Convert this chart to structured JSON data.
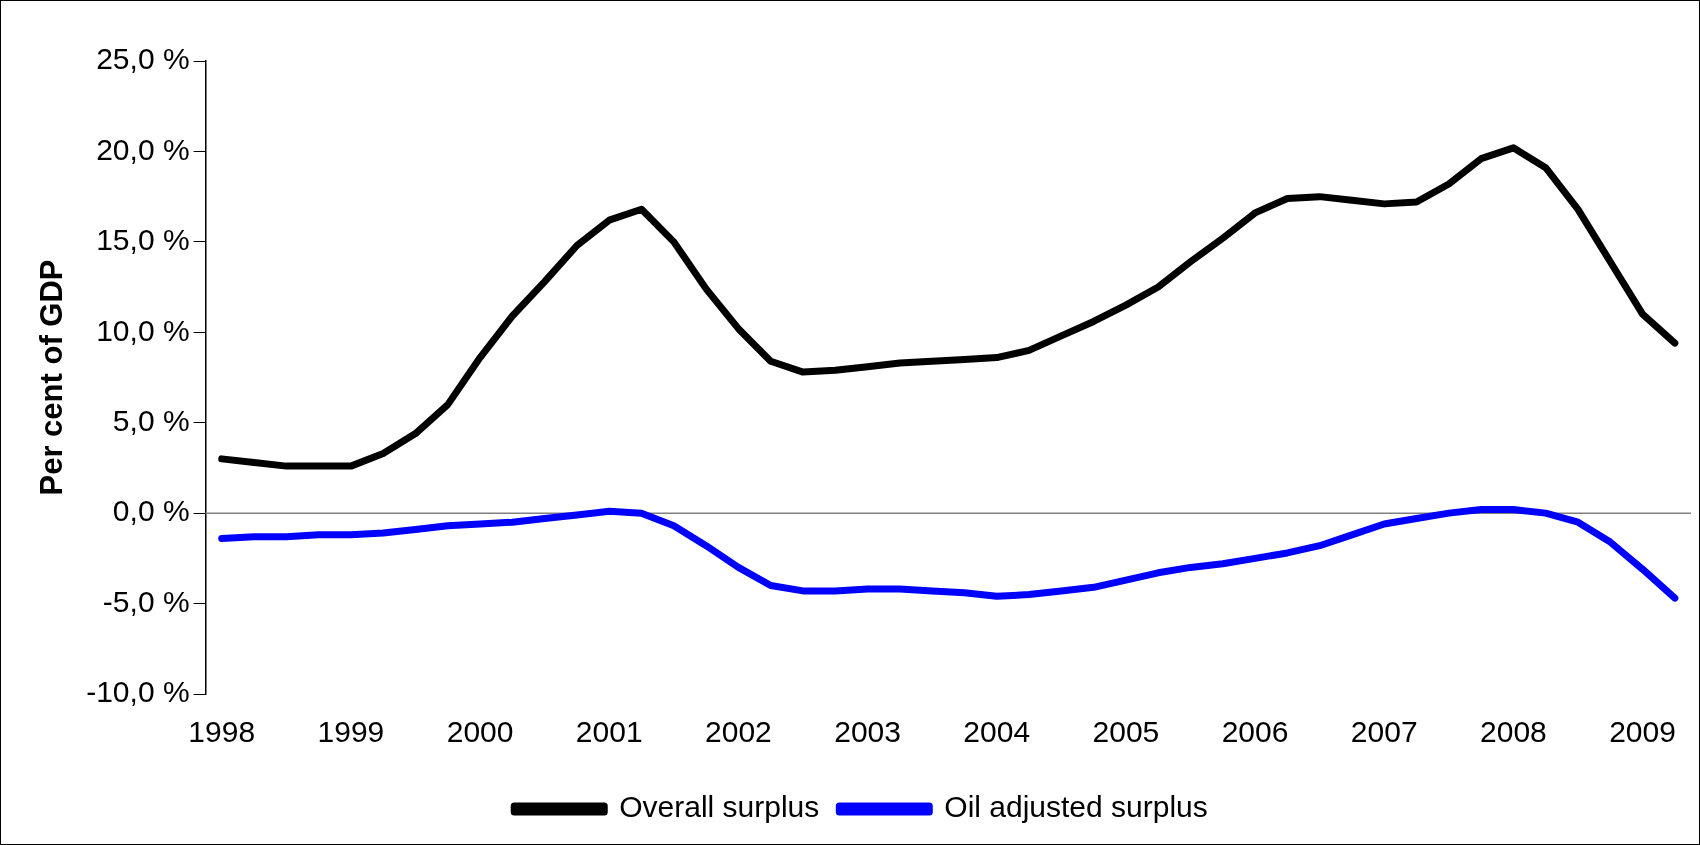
{
  "chart_data": {
    "type": "line",
    "ylabel": "Per cent of GDP",
    "categories": [
      "1998",
      null,
      null,
      null,
      "1999",
      null,
      null,
      null,
      "2000",
      null,
      null,
      null,
      "2001",
      null,
      null,
      null,
      "2002",
      null,
      null,
      null,
      "2003",
      null,
      null,
      null,
      "2004",
      null,
      null,
      null,
      "2005",
      null,
      null,
      null,
      "2006",
      null,
      null,
      null,
      "2007",
      null,
      null,
      null,
      "2008",
      null,
      null,
      null,
      "2009",
      null
    ],
    "series": [
      {
        "name": "Overall surplus",
        "color": "#000000",
        "values": [
          3.0,
          2.8,
          2.6,
          2.6,
          2.6,
          3.3,
          4.4,
          6.0,
          8.6,
          10.9,
          12.8,
          14.8,
          16.2,
          16.8,
          15.0,
          12.4,
          10.2,
          8.4,
          7.8,
          7.9,
          8.1,
          8.3,
          8.4,
          8.5,
          8.6,
          9.0,
          9.8,
          10.6,
          11.5,
          12.5,
          13.9,
          15.2,
          16.6,
          17.4,
          17.5,
          17.3,
          17.1,
          17.2,
          18.2,
          19.6,
          20.2,
          19.1,
          16.8,
          13.9,
          11.0,
          9.4
        ]
      },
      {
        "name": "Oil adjusted surplus",
        "color": "#0000ff",
        "values": [
          -1.4,
          -1.3,
          -1.3,
          -1.2,
          -1.2,
          -1.1,
          -0.9,
          -0.7,
          -0.6,
          -0.5,
          -0.3,
          -0.1,
          0.1,
          0.0,
          -0.7,
          -1.8,
          -3.0,
          -4.0,
          -4.3,
          -4.3,
          -4.2,
          -4.2,
          -4.3,
          -4.4,
          -4.6,
          -4.5,
          -4.3,
          -4.1,
          -3.7,
          -3.3,
          -3.0,
          -2.8,
          -2.5,
          -2.2,
          -1.8,
          -1.2,
          -0.6,
          -0.3,
          0.0,
          0.2,
          0.2,
          0.0,
          -0.5,
          -1.6,
          -3.1,
          -4.7
        ]
      }
    ],
    "ylim": [
      -10,
      25
    ],
    "yticks": [
      {
        "value": -10,
        "label": "-10,0 %"
      },
      {
        "value": -5,
        "label": "-5,0 %"
      },
      {
        "value": 0,
        "label": "0,0 %"
      },
      {
        "value": 5,
        "label": "5,0 %"
      },
      {
        "value": 10,
        "label": "10,0 %"
      },
      {
        "value": 15,
        "label": "15,0 %"
      },
      {
        "value": 20,
        "label": "20,0 %"
      },
      {
        "value": 25,
        "label": "25,0 %"
      }
    ],
    "ref_lines": [
      {
        "axis": "y",
        "value": 0,
        "color": "#808080"
      }
    ],
    "grid": false,
    "legend": "bottom",
    "marker": "none",
    "line_style": "solid"
  }
}
